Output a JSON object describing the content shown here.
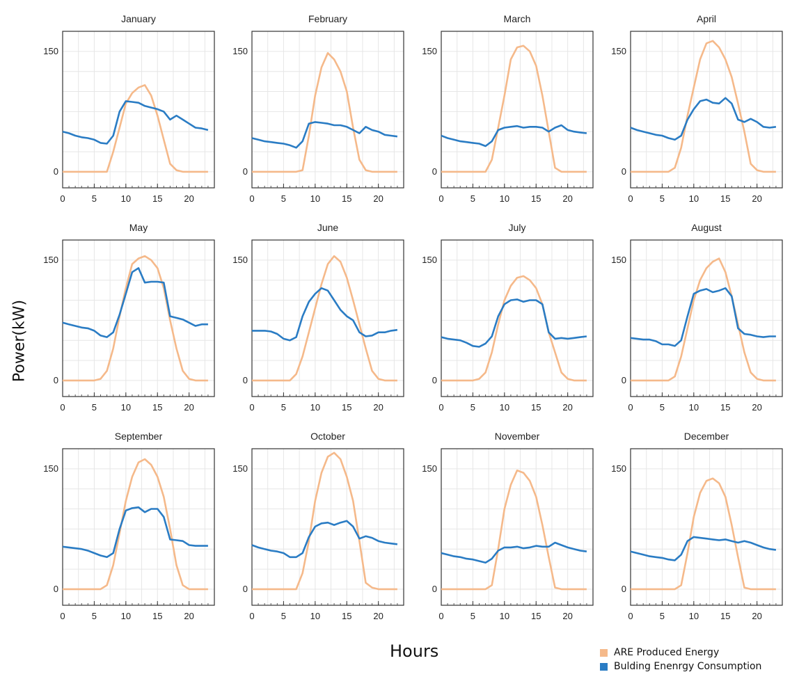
{
  "chart_data": {
    "type": "line",
    "ylabel": "Power(kW)",
    "xlabel": "Hours",
    "x": [
      0,
      1,
      2,
      3,
      4,
      5,
      6,
      7,
      8,
      9,
      10,
      11,
      12,
      13,
      14,
      15,
      16,
      17,
      18,
      19,
      20,
      21,
      22,
      23
    ],
    "xticks": [
      0,
      5,
      10,
      15,
      20
    ],
    "yticks": [
      0,
      150
    ],
    "xlim": [
      0,
      24
    ],
    "ylim": [
      -20,
      175
    ],
    "grid": true,
    "legend": {
      "position": "bottom-right",
      "entries": [
        {
          "label": "ARE Produced Energy",
          "color": "#f5b98a"
        },
        {
          "label": "Bulding Enenrgy Consumption",
          "color": "#2a7cc4"
        }
      ]
    },
    "series_colors": {
      "produced": "#f5b98a",
      "consumption": "#2a7cc4"
    },
    "panels": [
      {
        "title": "January",
        "produced": [
          0,
          0,
          0,
          0,
          0,
          0,
          0,
          0,
          25,
          55,
          85,
          98,
          105,
          108,
          95,
          70,
          40,
          10,
          2,
          0,
          0,
          0,
          0,
          0
        ],
        "consumption": [
          50,
          48,
          45,
          43,
          42,
          40,
          36,
          35,
          45,
          75,
          88,
          87,
          86,
          82,
          80,
          78,
          75,
          65,
          70,
          65,
          60,
          55,
          54,
          52
        ]
      },
      {
        "title": "February",
        "produced": [
          0,
          0,
          0,
          0,
          0,
          0,
          0,
          0,
          2,
          45,
          95,
          130,
          148,
          140,
          125,
          100,
          55,
          15,
          2,
          0,
          0,
          0,
          0,
          0
        ],
        "consumption": [
          42,
          40,
          38,
          37,
          36,
          35,
          33,
          30,
          38,
          60,
          62,
          61,
          60,
          58,
          58,
          56,
          52,
          48,
          56,
          52,
          50,
          46,
          45,
          44
        ]
      },
      {
        "title": "March",
        "produced": [
          0,
          0,
          0,
          0,
          0,
          0,
          0,
          0,
          15,
          55,
          95,
          140,
          155,
          157,
          150,
          132,
          95,
          50,
          5,
          0,
          0,
          0,
          0,
          0
        ],
        "consumption": [
          45,
          42,
          40,
          38,
          37,
          36,
          35,
          32,
          38,
          52,
          55,
          56,
          57,
          55,
          56,
          56,
          55,
          50,
          55,
          58,
          52,
          50,
          49,
          48
        ]
      },
      {
        "title": "April",
        "produced": [
          0,
          0,
          0,
          0,
          0,
          0,
          0,
          5,
          30,
          70,
          105,
          140,
          160,
          163,
          155,
          140,
          118,
          85,
          50,
          10,
          2,
          0,
          0,
          0
        ],
        "consumption": [
          55,
          52,
          50,
          48,
          46,
          45,
          42,
          40,
          45,
          65,
          78,
          88,
          90,
          86,
          85,
          92,
          85,
          65,
          62,
          66,
          62,
          56,
          55,
          56
        ]
      },
      {
        "title": "May",
        "produced": [
          0,
          0,
          0,
          0,
          0,
          0,
          2,
          12,
          40,
          80,
          115,
          145,
          152,
          155,
          150,
          140,
          115,
          75,
          40,
          12,
          2,
          0,
          0,
          0
        ],
        "consumption": [
          72,
          70,
          68,
          66,
          65,
          62,
          56,
          54,
          60,
          82,
          108,
          135,
          140,
          122,
          123,
          123,
          122,
          80,
          78,
          76,
          72,
          68,
          70,
          70
        ]
      },
      {
        "title": "June",
        "produced": [
          0,
          0,
          0,
          0,
          0,
          0,
          0,
          8,
          30,
          60,
          90,
          120,
          145,
          155,
          148,
          128,
          100,
          70,
          40,
          12,
          2,
          0,
          0,
          0
        ],
        "consumption": [
          62,
          62,
          62,
          61,
          58,
          52,
          50,
          54,
          80,
          98,
          108,
          115,
          112,
          100,
          88,
          80,
          75,
          60,
          55,
          56,
          60,
          60,
          62,
          63
        ]
      },
      {
        "title": "July",
        "produced": [
          0,
          0,
          0,
          0,
          0,
          0,
          2,
          10,
          35,
          70,
          100,
          118,
          128,
          130,
          125,
          115,
          95,
          60,
          35,
          10,
          2,
          0,
          0,
          0
        ],
        "consumption": [
          54,
          52,
          51,
          50,
          47,
          43,
          42,
          46,
          55,
          80,
          95,
          100,
          101,
          98,
          100,
          100,
          95,
          60,
          52,
          53,
          52,
          53,
          54,
          55
        ]
      },
      {
        "title": "August",
        "produced": [
          0,
          0,
          0,
          0,
          0,
          0,
          0,
          5,
          30,
          65,
          100,
          125,
          140,
          148,
          152,
          135,
          105,
          70,
          35,
          10,
          2,
          0,
          0,
          0
        ],
        "consumption": [
          53,
          52,
          51,
          51,
          49,
          45,
          45,
          43,
          50,
          80,
          108,
          112,
          114,
          110,
          112,
          115,
          105,
          65,
          58,
          57,
          55,
          54,
          55,
          55
        ]
      },
      {
        "title": "September",
        "produced": [
          0,
          0,
          0,
          0,
          0,
          0,
          0,
          5,
          30,
          70,
          110,
          140,
          158,
          162,
          155,
          140,
          115,
          75,
          30,
          5,
          0,
          0,
          0,
          0
        ],
        "consumption": [
          53,
          52,
          51,
          50,
          48,
          45,
          42,
          40,
          45,
          75,
          98,
          101,
          102,
          96,
          100,
          100,
          90,
          62,
          61,
          60,
          55,
          54,
          54,
          54
        ]
      },
      {
        "title": "October",
        "produced": [
          0,
          0,
          0,
          0,
          0,
          0,
          0,
          0,
          20,
          60,
          110,
          145,
          165,
          170,
          162,
          140,
          110,
          60,
          8,
          2,
          0,
          0,
          0,
          0
        ],
        "consumption": [
          55,
          52,
          50,
          48,
          47,
          45,
          40,
          40,
          45,
          65,
          78,
          82,
          83,
          80,
          83,
          85,
          78,
          63,
          66,
          64,
          60,
          58,
          57,
          56
        ]
      },
      {
        "title": "November",
        "produced": [
          0,
          0,
          0,
          0,
          0,
          0,
          0,
          0,
          5,
          50,
          100,
          130,
          148,
          145,
          135,
          115,
          80,
          40,
          2,
          0,
          0,
          0,
          0,
          0
        ],
        "consumption": [
          45,
          43,
          41,
          40,
          38,
          37,
          35,
          33,
          38,
          48,
          52,
          52,
          53,
          51,
          52,
          54,
          53,
          53,
          58,
          55,
          52,
          50,
          48,
          47
        ]
      },
      {
        "title": "December",
        "produced": [
          0,
          0,
          0,
          0,
          0,
          0,
          0,
          0,
          5,
          45,
          90,
          120,
          135,
          138,
          132,
          115,
          80,
          40,
          2,
          0,
          0,
          0,
          0,
          0
        ],
        "consumption": [
          47,
          45,
          43,
          41,
          40,
          39,
          37,
          36,
          43,
          60,
          65,
          64,
          63,
          62,
          61,
          62,
          60,
          58,
          60,
          58,
          55,
          52,
          50,
          49
        ]
      }
    ]
  }
}
